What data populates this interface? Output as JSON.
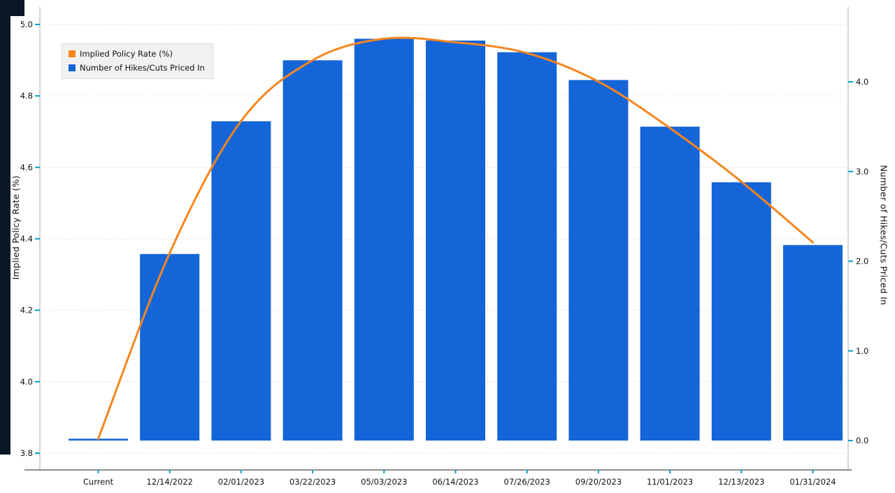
{
  "chart_data": {
    "type": "bar",
    "title": "",
    "categories": [
      "Current",
      "12/14/2022",
      "02/01/2023",
      "03/22/2023",
      "05/03/2023",
      "06/14/2023",
      "07/26/2023",
      "09/20/2023",
      "11/01/2023",
      "12/13/2023",
      "01/31/2024"
    ],
    "series": [
      {
        "name": "Implied Policy Rate (%)",
        "type": "line",
        "axis": "left",
        "color": "#f6861f",
        "values": [
          3.84,
          4.36,
          4.73,
          4.9,
          4.96,
          4.95,
          4.92,
          4.84,
          4.71,
          4.56,
          4.39
        ]
      },
      {
        "name": "Number of Hikes/Cuts Priced In",
        "type": "bar",
        "axis": "right",
        "color": "#1465d8",
        "values": [
          0.0,
          2.08,
          3.56,
          4.24,
          4.48,
          4.46,
          4.33,
          4.02,
          3.5,
          2.88,
          2.18
        ]
      }
    ],
    "left_axis": {
      "title": "Implied Policy Rate (%)",
      "min": 3.8,
      "max": 5.0,
      "ticks": [
        3.8,
        4.0,
        4.2,
        4.4,
        4.6,
        4.8,
        5.0
      ]
    },
    "right_axis": {
      "title": "Number of Hikes/Cuts Priced In",
      "min": 0.0,
      "max": 4.8,
      "ticks": [
        0.0,
        1.0,
        2.0,
        3.0,
        4.0
      ]
    },
    "grid": "dotted-horizontal",
    "legend_position": "top-left"
  },
  "colors": {
    "bar": "#1465d8",
    "line": "#f6861f",
    "tick_mark": "#00a2c7",
    "grid": "#cccccc",
    "axis_line": "#222222",
    "frame_line": "#aaaaaa",
    "label_text": "#111111",
    "legend_bg": "#f1f1f1",
    "left_strip": "#0a1726"
  }
}
